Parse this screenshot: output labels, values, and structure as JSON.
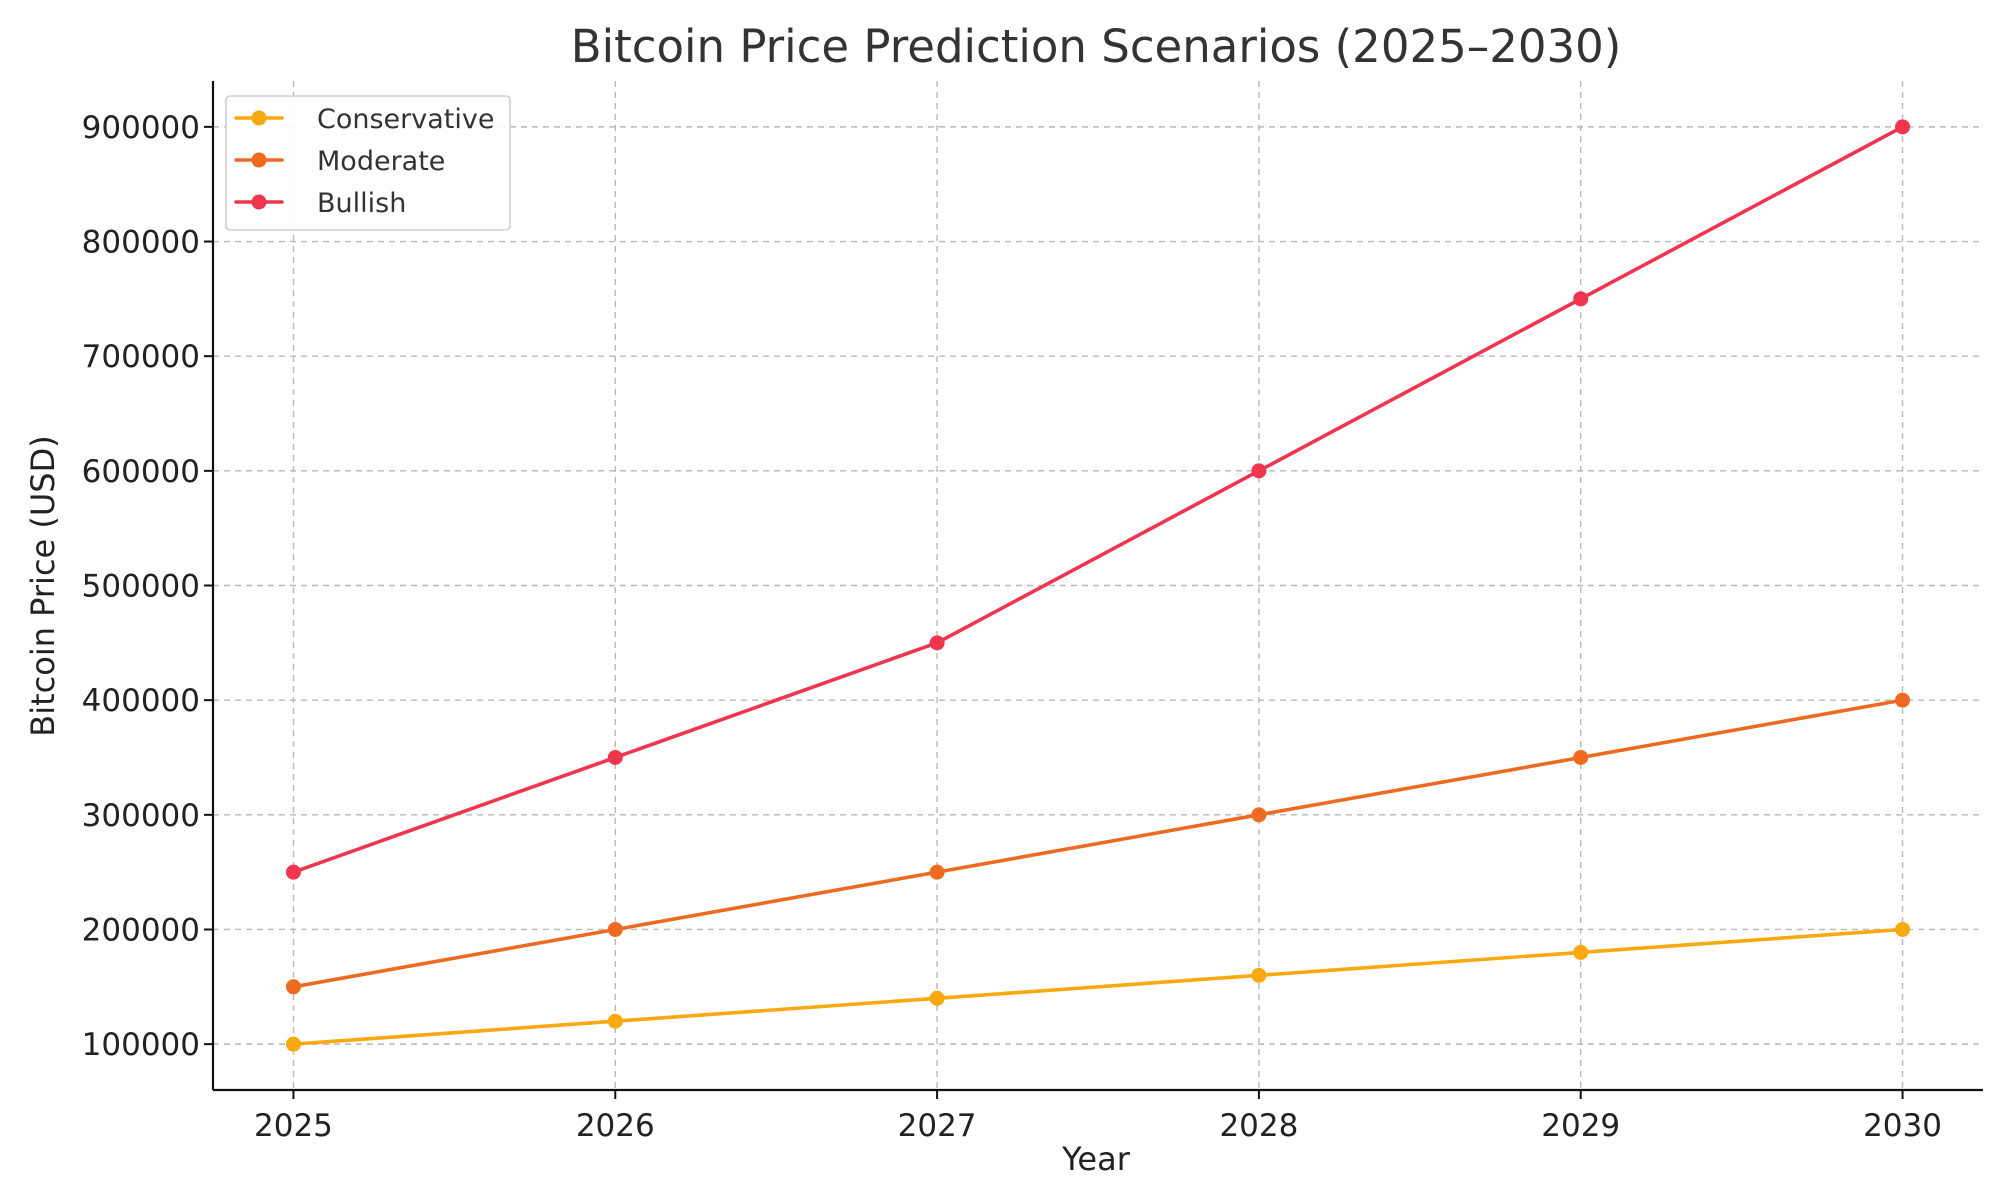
{
  "chart_data": {
    "type": "line",
    "title": "Bitcoin Price Prediction Scenarios (2025–2030)",
    "xlabel": "Year",
    "ylabel": "Bitcoin Price (USD)",
    "x": [
      2025,
      2026,
      2027,
      2028,
      2029,
      2030
    ],
    "x_tick_labels": [
      "2025",
      "2026",
      "2027",
      "2028",
      "2029",
      "2030"
    ],
    "y_ticks": [
      100000,
      200000,
      300000,
      400000,
      500000,
      600000,
      700000,
      800000,
      900000
    ],
    "y_tick_labels": [
      "100000",
      "200000",
      "300000",
      "400000",
      "500000",
      "600000",
      "700000",
      "800000",
      "900000"
    ],
    "xlim": [
      2024.75,
      2030.25
    ],
    "ylim": [
      60000,
      940000
    ],
    "grid": true,
    "legend_position": "top-left",
    "series": [
      {
        "name": "Conservative",
        "color": "#f7a90f",
        "values": [
          100000,
          120000,
          140000,
          160000,
          180000,
          200000
        ]
      },
      {
        "name": "Moderate",
        "color": "#ee6a21",
        "values": [
          150000,
          200000,
          250000,
          300000,
          350000,
          400000
        ]
      },
      {
        "name": "Bullish",
        "color": "#f0354f",
        "values": [
          250000,
          350000,
          450000,
          600000,
          750000,
          900000
        ]
      }
    ]
  }
}
